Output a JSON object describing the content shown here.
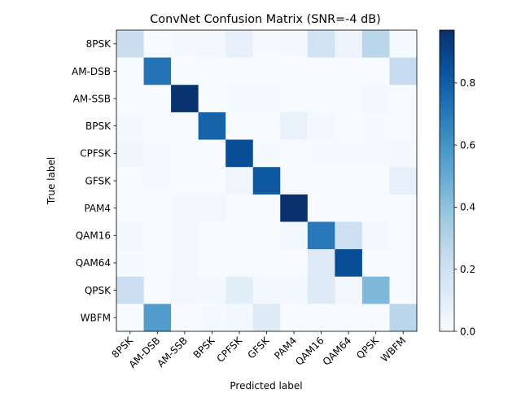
{
  "chart_data": {
    "type": "heatmap",
    "title": "ConvNet Confusion Matrix (SNR=-4 dB)",
    "xlabel": "Predicted label",
    "ylabel": "True label",
    "labels": [
      "8PSK",
      "AM-DSB",
      "AM-SSB",
      "BPSK",
      "CPFSK",
      "GFSK",
      "PAM4",
      "QAM16",
      "QAM64",
      "QPSK",
      "WBFM"
    ],
    "matrix": [
      [
        0.22,
        0.0,
        0.02,
        0.03,
        0.08,
        0.01,
        0.02,
        0.18,
        0.05,
        0.28,
        0.01
      ],
      [
        0.0,
        0.72,
        0.0,
        0.0,
        0.0,
        0.0,
        0.0,
        0.0,
        0.0,
        0.0,
        0.24
      ],
      [
        0.0,
        0.0,
        0.96,
        0.0,
        0.01,
        0.01,
        0.0,
        0.0,
        0.0,
        0.02,
        0.0
      ],
      [
        0.02,
        0.0,
        0.0,
        0.78,
        0.0,
        0.0,
        0.07,
        0.02,
        0.0,
        0.01,
        0.0
      ],
      [
        0.04,
        0.01,
        0.0,
        0.0,
        0.86,
        0.01,
        0.0,
        0.01,
        0.01,
        0.01,
        0.02
      ],
      [
        0.0,
        0.01,
        0.0,
        0.0,
        0.04,
        0.82,
        0.0,
        0.0,
        0.0,
        0.0,
        0.08
      ],
      [
        0.0,
        0.0,
        0.02,
        0.03,
        0.0,
        0.0,
        0.97,
        0.0,
        0.0,
        0.0,
        0.0
      ],
      [
        0.03,
        0.0,
        0.02,
        0.0,
        0.0,
        0.0,
        0.02,
        0.7,
        0.2,
        0.02,
        0.0
      ],
      [
        0.01,
        0.0,
        0.02,
        0.0,
        0.0,
        0.0,
        0.0,
        0.12,
        0.86,
        0.0,
        0.0
      ],
      [
        0.21,
        0.0,
        0.03,
        0.02,
        0.1,
        0.02,
        0.02,
        0.12,
        0.03,
        0.44,
        0.0
      ],
      [
        0.0,
        0.56,
        0.0,
        0.01,
        0.02,
        0.12,
        0.0,
        0.0,
        0.0,
        0.0,
        0.28
      ]
    ],
    "colorbar": {
      "min": 0.0,
      "max": 0.97,
      "ticks": [
        "0.0",
        "0.2",
        "0.4",
        "0.6",
        "0.8"
      ]
    },
    "colormap": "Blues",
    "grid": false
  }
}
